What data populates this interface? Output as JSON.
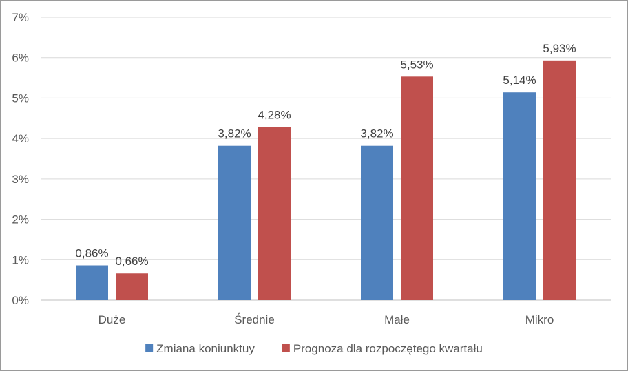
{
  "chart_data": {
    "type": "bar",
    "categories": [
      "Duże",
      "Średnie",
      "Małe",
      "Mikro"
    ],
    "series": [
      {
        "name": "Zmiana koniunktuy",
        "color": "#4f81bd",
        "values": [
          0.86,
          3.82,
          3.82,
          5.14
        ],
        "labels": [
          "0,86%",
          "3,82%",
          "3,82%",
          "5,14%"
        ]
      },
      {
        "name": "Prognoza dla rozpoczętego kwartału",
        "color": "#c0504d",
        "values": [
          0.66,
          4.28,
          5.53,
          5.93
        ],
        "labels": [
          "0,66%",
          "4,28%",
          "5,53%",
          "5,93%"
        ]
      }
    ],
    "ylim": [
      0,
      7
    ],
    "yticks": [
      0,
      1,
      2,
      3,
      4,
      5,
      6,
      7
    ],
    "ytick_labels": [
      "0%",
      "1%",
      "2%",
      "3%",
      "4%",
      "5%",
      "6%",
      "7%"
    ],
    "grid": true,
    "legend_position": "bottom",
    "xlabel": "",
    "ylabel": ""
  }
}
